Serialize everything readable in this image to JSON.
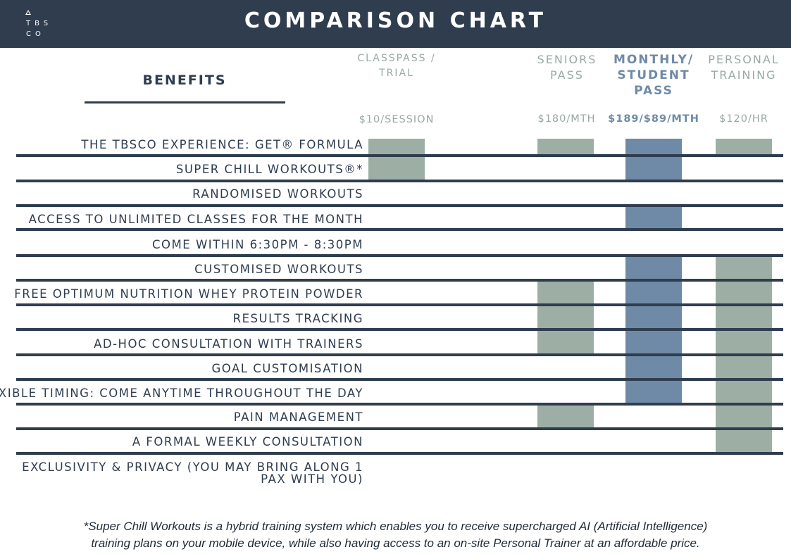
{
  "header": {
    "logo_line1": "TBS",
    "logo_line2": "CO",
    "title": "COMPARISON CHART"
  },
  "benefits_heading": "BENEFITS",
  "columns": [
    {
      "key": "classpass",
      "heading_lines": [
        "CLASSPASS /",
        "TRIAL"
      ],
      "price": "$10/SESSION",
      "color": "#9dafa5"
    },
    {
      "key": "seniors",
      "heading_lines": [
        "SENIORS",
        "PASS"
      ],
      "price": "$180/MTH",
      "color": "#9dafa5"
    },
    {
      "key": "monthly",
      "heading_lines": [
        "MONTHLY/",
        "STUDENT",
        "PASS"
      ],
      "price": "$189/$89/MTH",
      "color": "#6e8aa7"
    },
    {
      "key": "personal",
      "heading_lines": [
        "PERSONAL",
        "TRAINING"
      ],
      "price": "$120/HR",
      "color": "#9dafa5"
    }
  ],
  "rows": [
    {
      "label": "THE TBSCO EXPERIENCE: GET® FORMULA",
      "classpass": true,
      "seniors": true,
      "monthly": true,
      "personal": true
    },
    {
      "label": "SUPER CHILL WORKOUTS®*",
      "classpass": true,
      "seniors": false,
      "monthly": true,
      "personal": false
    },
    {
      "label": "RANDOMISED WORKOUTS",
      "classpass": false,
      "seniors": false,
      "monthly": false,
      "personal": false
    },
    {
      "label": "ACCESS TO UNLIMITED CLASSES FOR THE MONTH",
      "classpass": false,
      "seniors": false,
      "monthly": true,
      "personal": false
    },
    {
      "label": "COME WITHIN 6:30PM - 8:30PM",
      "classpass": false,
      "seniors": false,
      "monthly": false,
      "personal": false
    },
    {
      "label": "CUSTOMISED WORKOUTS",
      "classpass": false,
      "seniors": false,
      "monthly": true,
      "personal": true
    },
    {
      "label": "FREE OPTIMUM NUTRITION WHEY PROTEIN POWDER",
      "classpass": false,
      "seniors": true,
      "monthly": true,
      "personal": true
    },
    {
      "label": "RESULTS TRACKING",
      "classpass": false,
      "seniors": true,
      "monthly": true,
      "personal": true
    },
    {
      "label": "AD-HOC CONSULTATION WITH TRAINERS",
      "classpass": false,
      "seniors": true,
      "monthly": true,
      "personal": true
    },
    {
      "label": "GOAL CUSTOMISATION",
      "classpass": false,
      "seniors": false,
      "monthly": true,
      "personal": true
    },
    {
      "label": "FLEXIBLE TIMING: COME ANYTIME THROUGHOUT THE DAY",
      "classpass": false,
      "seniors": false,
      "monthly": true,
      "personal": true
    },
    {
      "label": "PAIN MANAGEMENT",
      "classpass": false,
      "seniors": true,
      "monthly": false,
      "personal": true
    },
    {
      "label": "A FORMAL WEEKLY CONSULTATION",
      "classpass": false,
      "seniors": false,
      "monthly": false,
      "personal": true
    },
    {
      "label": "EXCLUSIVITY & PRIVACY (YOU MAY BRING ALONG 1 PAX WITH YOU)",
      "classpass": false,
      "seniors": false,
      "monthly": false,
      "personal": false
    }
  ],
  "footnote": {
    "line1": "*Super Chill Workouts is a hybrid training system which enables you to receive supercharged AI (Artificial Intelligence)",
    "line2": "training plans on your mobile device, while also having access to an on-site Personal Trainer at an affordable price."
  },
  "colors": {
    "navy": "#2f3d4f",
    "sage": "#9dafa5",
    "steel_blue": "#6e8aa7"
  }
}
